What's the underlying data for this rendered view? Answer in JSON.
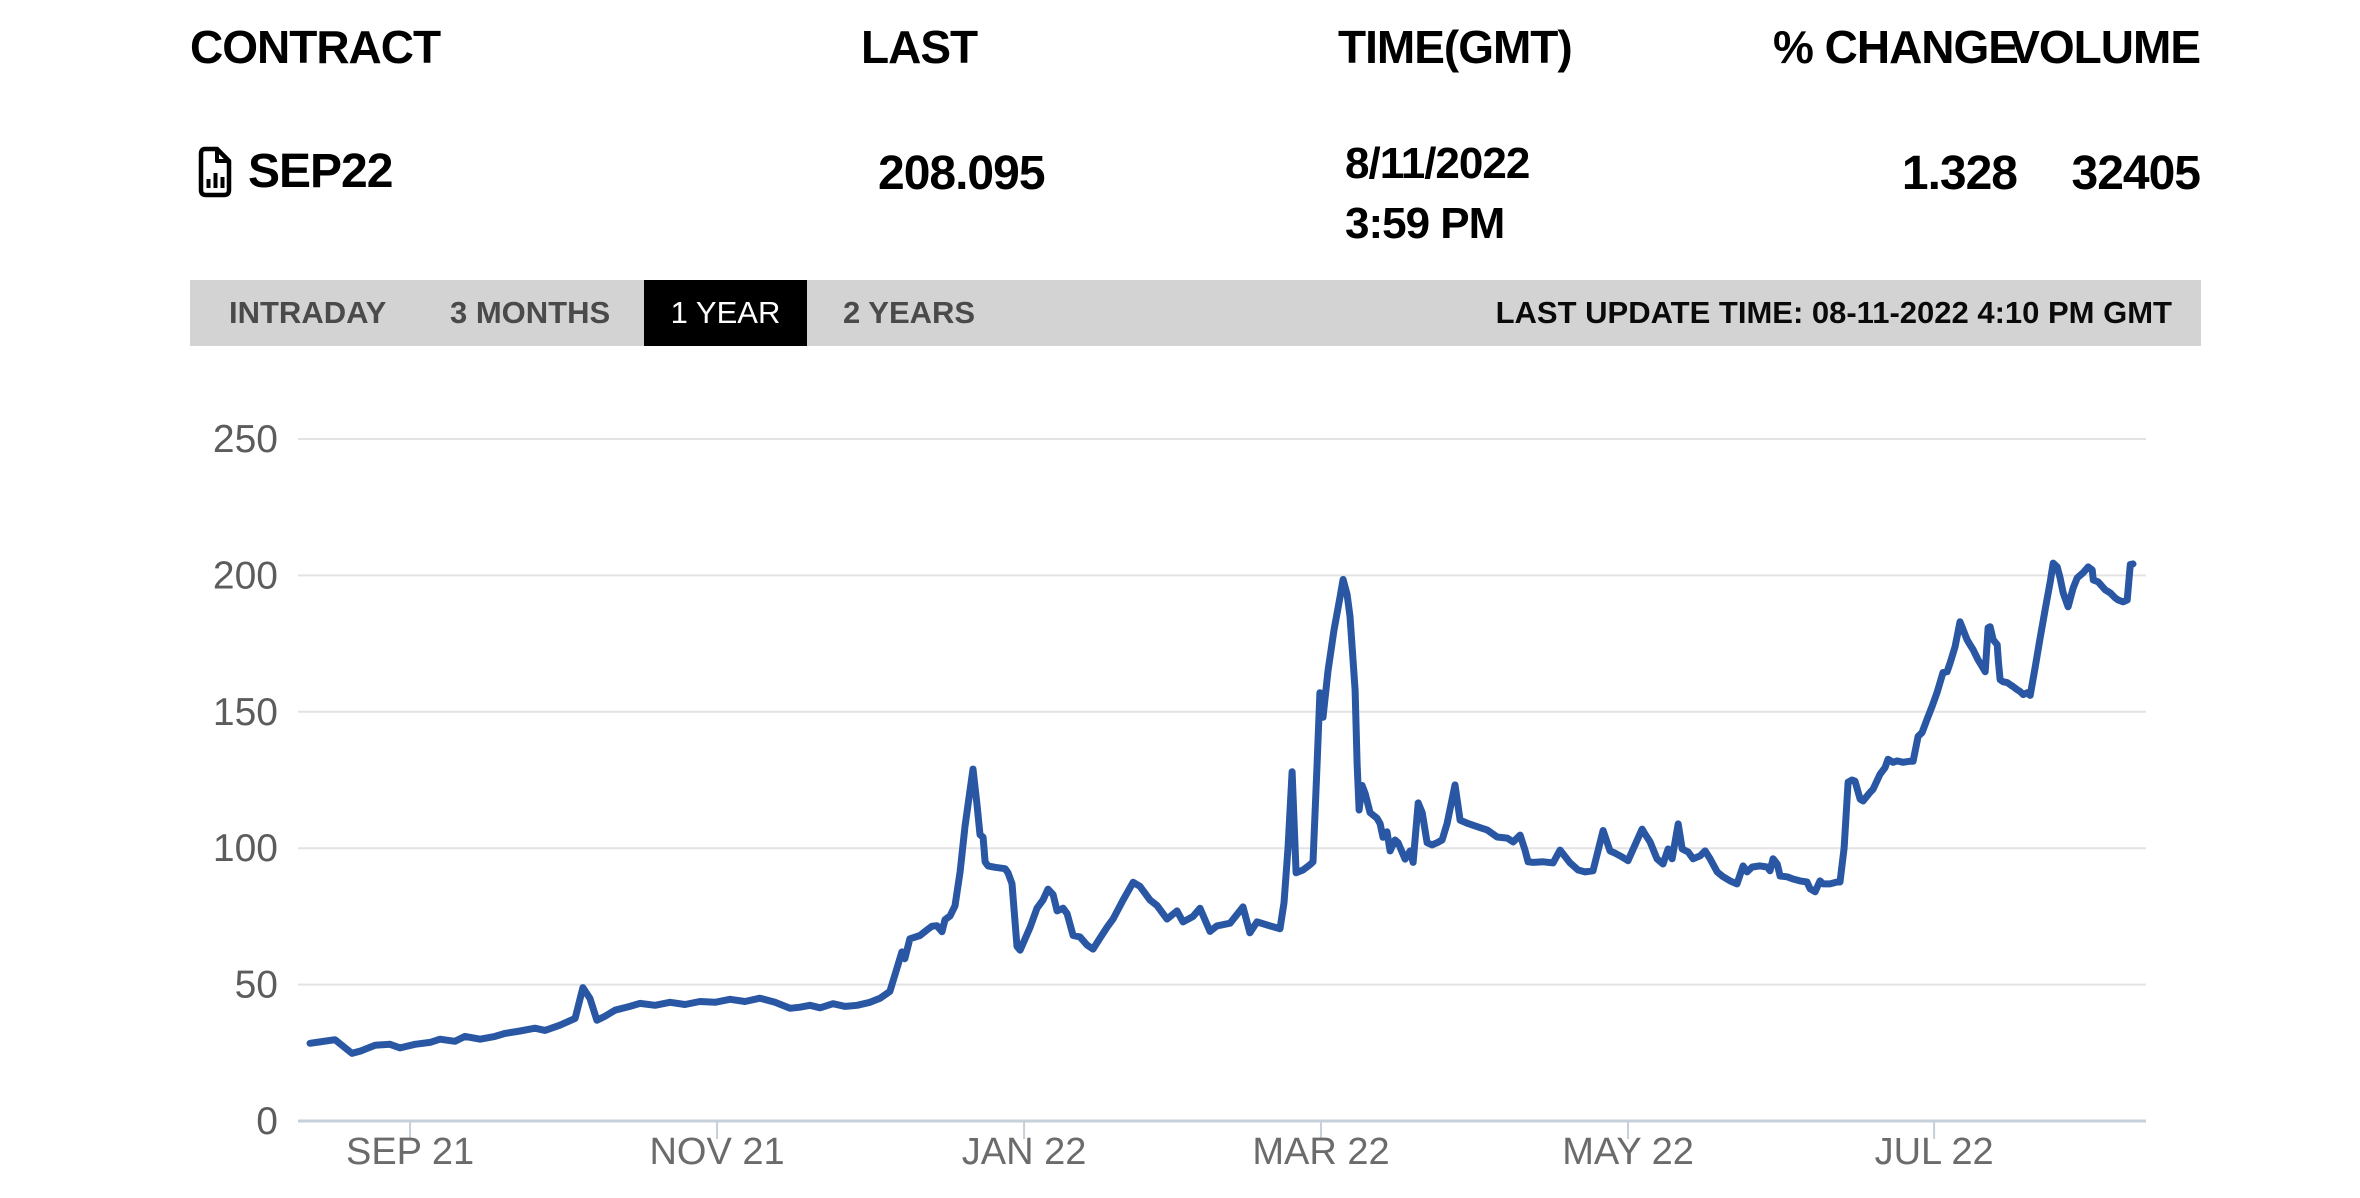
{
  "table": {
    "headers": {
      "contract": "CONTRACT",
      "last": "LAST",
      "time": "TIME(GMT)",
      "pct_change": "% CHANGE",
      "volume": "VOLUME"
    },
    "row": {
      "contract": "SEP22",
      "contract_icon": "chart-document-icon",
      "last": "208.095",
      "time_date": "8/11/2022",
      "time_clock": "3:59 PM",
      "pct_change": "1.328",
      "volume": "32405"
    }
  },
  "tabs": {
    "items": [
      {
        "label": "INTRADAY",
        "active": false
      },
      {
        "label": "3 MONTHS",
        "active": false
      },
      {
        "label": "1 YEAR",
        "active": true
      },
      {
        "label": "2 YEARS",
        "active": false
      }
    ],
    "last_update": "LAST UPDATE TIME: 08-11-2022 4:10 PM GMT"
  },
  "colors": {
    "line_blue": "#2a57a4",
    "tab_bar_bg": "#d3d3d3",
    "tab_active_bg": "#000000",
    "tab_active_text": "#ffffff",
    "tab_text": "#4a4a4a",
    "grid": "#e3e3e3",
    "axis": "#c6cfda",
    "y_label": "#5c5c5c",
    "x_label": "#6b6b6b"
  },
  "chart_data": {
    "type": "line",
    "series_name": "SEP22",
    "title": "",
    "xlabel": "",
    "ylabel": "",
    "ylim": [
      0,
      250
    ],
    "yticks": [
      0,
      50,
      100,
      150,
      200,
      250
    ],
    "grid": true,
    "line_color": "#2a57a4",
    "xticks": [
      {
        "label": "SEP 21",
        "t": 0.0549
      },
      {
        "label": "NOV 21",
        "t": 0.2233
      },
      {
        "label": "JAN 22",
        "t": 0.3917
      },
      {
        "label": "MAR 22",
        "t": 0.5546
      },
      {
        "label": "MAY 22",
        "t": 0.723
      },
      {
        "label": "JUL 22",
        "t": 0.8909
      }
    ],
    "points": [
      [
        0.0,
        28.5
      ],
      [
        0.0055,
        29.0
      ],
      [
        0.0137,
        29.8
      ],
      [
        0.023,
        24.8
      ],
      [
        0.0274,
        25.6
      ],
      [
        0.0357,
        27.8
      ],
      [
        0.0439,
        28.1
      ],
      [
        0.0494,
        26.8
      ],
      [
        0.0576,
        28.1
      ],
      [
        0.0658,
        28.8
      ],
      [
        0.0713,
        30.0
      ],
      [
        0.0795,
        29.2
      ],
      [
        0.085,
        31.0
      ],
      [
        0.0933,
        30.0
      ],
      [
        0.1015,
        31.0
      ],
      [
        0.107,
        32.1
      ],
      [
        0.1152,
        33.0
      ],
      [
        0.1234,
        34.0
      ],
      [
        0.1289,
        33.2
      ],
      [
        0.1371,
        35.1
      ],
      [
        0.1454,
        37.6
      ],
      [
        0.1497,
        48.9
      ],
      [
        0.1536,
        44.9
      ],
      [
        0.1574,
        36.9
      ],
      [
        0.1618,
        38.4
      ],
      [
        0.1673,
        40.6
      ],
      [
        0.1755,
        42.0
      ],
      [
        0.181,
        43.1
      ],
      [
        0.1893,
        42.4
      ],
      [
        0.1975,
        43.5
      ],
      [
        0.2057,
        42.7
      ],
      [
        0.2139,
        43.8
      ],
      [
        0.2222,
        43.5
      ],
      [
        0.2304,
        44.6
      ],
      [
        0.2386,
        43.8
      ],
      [
        0.2468,
        45.0
      ],
      [
        0.2551,
        43.5
      ],
      [
        0.2633,
        41.3
      ],
      [
        0.2688,
        41.7
      ],
      [
        0.2743,
        42.4
      ],
      [
        0.2798,
        41.5
      ],
      [
        0.2869,
        43.0
      ],
      [
        0.2935,
        42.0
      ],
      [
        0.3001,
        42.4
      ],
      [
        0.3072,
        43.5
      ],
      [
        0.3127,
        45.0
      ],
      [
        0.3181,
        47.5
      ],
      [
        0.3247,
        62.0
      ],
      [
        0.3263,
        59.5
      ],
      [
        0.3291,
        66.8
      ],
      [
        0.3346,
        68.0
      ],
      [
        0.3384,
        70.0
      ],
      [
        0.3412,
        71.4
      ],
      [
        0.3439,
        71.6
      ],
      [
        0.3467,
        69.4
      ],
      [
        0.3483,
        73.8
      ],
      [
        0.3511,
        75.2
      ],
      [
        0.3538,
        78.9
      ],
      [
        0.3566,
        91.3
      ],
      [
        0.3593,
        108.0
      ],
      [
        0.3637,
        129.0
      ],
      [
        0.3659,
        116.0
      ],
      [
        0.3675,
        105.0
      ],
      [
        0.3692,
        104.0
      ],
      [
        0.3703,
        95.0
      ],
      [
        0.3719,
        93.5
      ],
      [
        0.3758,
        93.0
      ],
      [
        0.3813,
        92.5
      ],
      [
        0.3829,
        91.0
      ],
      [
        0.3851,
        87.0
      ],
      [
        0.3878,
        64.0
      ],
      [
        0.3895,
        62.6
      ],
      [
        0.395,
        71.0
      ],
      [
        0.3988,
        78.0
      ],
      [
        0.4021,
        81.0
      ],
      [
        0.4048,
        85.0
      ],
      [
        0.4076,
        83.0
      ],
      [
        0.4098,
        77.0
      ],
      [
        0.4131,
        78.0
      ],
      [
        0.4153,
        76.0
      ],
      [
        0.4186,
        68.0
      ],
      [
        0.4224,
        67.5
      ],
      [
        0.4262,
        64.5
      ],
      [
        0.4295,
        63.0
      ],
      [
        0.4333,
        67.0
      ],
      [
        0.4372,
        71.0
      ],
      [
        0.4405,
        74.0
      ],
      [
        0.446,
        81.0
      ],
      [
        0.4515,
        87.5
      ],
      [
        0.4553,
        86.0
      ],
      [
        0.4608,
        81.0
      ],
      [
        0.4646,
        79.0
      ],
      [
        0.4701,
        74.0
      ],
      [
        0.4756,
        77.0
      ],
      [
        0.4789,
        73.0
      ],
      [
        0.4844,
        75.0
      ],
      [
        0.4882,
        78.0
      ],
      [
        0.4937,
        69.5
      ],
      [
        0.4975,
        71.5
      ],
      [
        0.5047,
        72.5
      ],
      [
        0.5118,
        78.5
      ],
      [
        0.5156,
        69.0
      ],
      [
        0.5195,
        73.0
      ],
      [
        0.5266,
        71.5
      ],
      [
        0.5321,
        70.5
      ],
      [
        0.5343,
        80.0
      ],
      [
        0.5365,
        100.0
      ],
      [
        0.5387,
        128.0
      ],
      [
        0.5409,
        91.0
      ],
      [
        0.5447,
        92.0
      ],
      [
        0.5486,
        94.0
      ],
      [
        0.5502,
        95.0
      ],
      [
        0.5524,
        130.0
      ],
      [
        0.554,
        157.0
      ],
      [
        0.5557,
        148.0
      ],
      [
        0.5584,
        165.0
      ],
      [
        0.5617,
        180.0
      ],
      [
        0.565,
        192.0
      ],
      [
        0.5667,
        198.5
      ],
      [
        0.5689,
        193.0
      ],
      [
        0.5705,
        185.0
      ],
      [
        0.5733,
        158.0
      ],
      [
        0.5744,
        131.0
      ],
      [
        0.5755,
        114.0
      ],
      [
        0.5771,
        123.0
      ],
      [
        0.5788,
        120.0
      ],
      [
        0.5815,
        113.0
      ],
      [
        0.5853,
        111.0
      ],
      [
        0.587,
        109.0
      ],
      [
        0.5886,
        104.0
      ],
      [
        0.5908,
        106.0
      ],
      [
        0.5925,
        99.0
      ],
      [
        0.5952,
        103.0
      ],
      [
        0.5969,
        102.0
      ],
      [
        0.6007,
        96.0
      ],
      [
        0.6035,
        99.0
      ],
      [
        0.6051,
        94.8
      ],
      [
        0.6079,
        116.6
      ],
      [
        0.6101,
        113.0
      ],
      [
        0.6128,
        102.0
      ],
      [
        0.6155,
        101.2
      ],
      [
        0.6183,
        102.0
      ],
      [
        0.621,
        103.0
      ],
      [
        0.6238,
        109.2
      ],
      [
        0.6281,
        123.2
      ],
      [
        0.6309,
        110.3
      ],
      [
        0.6353,
        109.0
      ],
      [
        0.6419,
        107.5
      ],
      [
        0.6457,
        106.7
      ],
      [
        0.6512,
        104.1
      ],
      [
        0.6567,
        103.7
      ],
      [
        0.66,
        102.3
      ],
      [
        0.6638,
        104.8
      ],
      [
        0.6665,
        99.3
      ],
      [
        0.6682,
        95.0
      ],
      [
        0.6709,
        94.8
      ],
      [
        0.6764,
        95.0
      ],
      [
        0.6819,
        94.6
      ],
      [
        0.6857,
        99.3
      ],
      [
        0.6912,
        94.6
      ],
      [
        0.6956,
        92.0
      ],
      [
        0.6994,
        91.3
      ],
      [
        0.7038,
        91.7
      ],
      [
        0.7093,
        106.5
      ],
      [
        0.7131,
        99.0
      ],
      [
        0.7158,
        98.2
      ],
      [
        0.7197,
        96.8
      ],
      [
        0.723,
        95.4
      ],
      [
        0.7307,
        107.0
      ],
      [
        0.7323,
        105.2
      ],
      [
        0.7351,
        102.3
      ],
      [
        0.7389,
        96.1
      ],
      [
        0.7422,
        94.2
      ],
      [
        0.745,
        99.7
      ],
      [
        0.7472,
        96.1
      ],
      [
        0.7505,
        108.9
      ],
      [
        0.7527,
        99.7
      ],
      [
        0.756,
        98.6
      ],
      [
        0.7587,
        96.1
      ],
      [
        0.7626,
        97.2
      ],
      [
        0.7653,
        99.0
      ],
      [
        0.768,
        96.1
      ],
      [
        0.7719,
        91.3
      ],
      [
        0.7752,
        89.5
      ],
      [
        0.779,
        88.0
      ],
      [
        0.7828,
        86.9
      ],
      [
        0.7861,
        93.5
      ],
      [
        0.7883,
        91.3
      ],
      [
        0.7911,
        93.1
      ],
      [
        0.7954,
        93.5
      ],
      [
        0.7993,
        93.1
      ],
      [
        0.8009,
        91.7
      ],
      [
        0.8026,
        96.1
      ],
      [
        0.8048,
        94.2
      ],
      [
        0.8064,
        89.8
      ],
      [
        0.8103,
        89.5
      ],
      [
        0.8135,
        88.7
      ],
      [
        0.8174,
        88.0
      ],
      [
        0.8212,
        87.6
      ],
      [
        0.8229,
        85.1
      ],
      [
        0.8256,
        84.0
      ],
      [
        0.8283,
        88.0
      ],
      [
        0.83,
        86.9
      ],
      [
        0.8338,
        86.9
      ],
      [
        0.8377,
        87.6
      ],
      [
        0.8393,
        87.6
      ],
      [
        0.8415,
        100.0
      ],
      [
        0.8437,
        124.2
      ],
      [
        0.8459,
        125.0
      ],
      [
        0.8475,
        124.6
      ],
      [
        0.8503,
        118.0
      ],
      [
        0.8519,
        117.3
      ],
      [
        0.8558,
        120.5
      ],
      [
        0.8574,
        121.6
      ],
      [
        0.8612,
        127.1
      ],
      [
        0.864,
        129.6
      ],
      [
        0.8656,
        132.6
      ],
      [
        0.8684,
        131.5
      ],
      [
        0.8706,
        132.0
      ],
      [
        0.8739,
        131.5
      ],
      [
        0.8777,
        131.9
      ],
      [
        0.8794,
        131.9
      ],
      [
        0.8821,
        141.0
      ],
      [
        0.8843,
        142.4
      ],
      [
        0.887,
        147.2
      ],
      [
        0.8898,
        152.0
      ],
      [
        0.8925,
        157.0
      ],
      [
        0.8958,
        164.4
      ],
      [
        0.898,
        164.7
      ],
      [
        0.8997,
        168.0
      ],
      [
        0.9024,
        173.9
      ],
      [
        0.9051,
        183.0
      ],
      [
        0.9068,
        180.1
      ],
      [
        0.909,
        176.4
      ],
      [
        0.9106,
        174.6
      ],
      [
        0.9123,
        172.8
      ],
      [
        0.915,
        169.1
      ],
      [
        0.9172,
        166.6
      ],
      [
        0.9189,
        164.7
      ],
      [
        0.9205,
        180.8
      ],
      [
        0.9216,
        181.2
      ],
      [
        0.9233,
        176.4
      ],
      [
        0.9255,
        174.6
      ],
      [
        0.9262,
        168.0
      ],
      [
        0.9271,
        161.8
      ],
      [
        0.9288,
        161.0
      ],
      [
        0.931,
        160.7
      ],
      [
        0.9343,
        159.2
      ],
      [
        0.9365,
        158.1
      ],
      [
        0.9381,
        157.4
      ],
      [
        0.9398,
        156.3
      ],
      [
        0.942,
        157.0
      ],
      [
        0.9436,
        156.0
      ],
      [
        0.9464,
        166.6
      ],
      [
        0.9491,
        177.2
      ],
      [
        0.9518,
        187.4
      ],
      [
        0.9546,
        197.6
      ],
      [
        0.9562,
        204.5
      ],
      [
        0.9584,
        203.1
      ],
      [
        0.96,
        199.1
      ],
      [
        0.9617,
        193.6
      ],
      [
        0.9644,
        188.5
      ],
      [
        0.9672,
        195.4
      ],
      [
        0.9694,
        199.1
      ],
      [
        0.9727,
        201.0
      ],
      [
        0.9754,
        203.1
      ],
      [
        0.9776,
        202.0
      ],
      [
        0.9782,
        198.3
      ],
      [
        0.9809,
        197.6
      ],
      [
        0.9848,
        194.7
      ],
      [
        0.9875,
        193.6
      ],
      [
        0.9902,
        191.8
      ],
      [
        0.9919,
        191.0
      ],
      [
        0.9946,
        190.3
      ],
      [
        0.9968,
        191.0
      ],
      [
        0.9985,
        204.0
      ],
      [
        1.0,
        204.2
      ]
    ]
  }
}
